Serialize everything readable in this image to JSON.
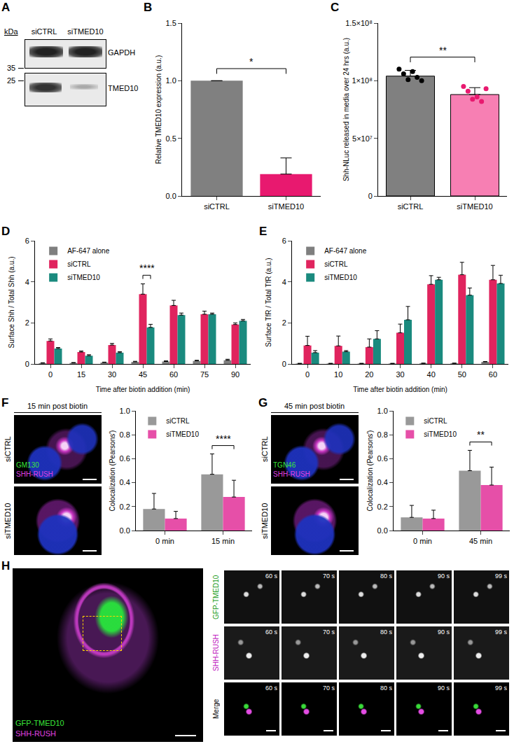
{
  "chart_data": [
    {
      "panel": "B",
      "type": "bar",
      "categories": [
        "siCTRL",
        "siTMED10"
      ],
      "values": [
        1,
        0.19
      ],
      "errors": [
        0,
        0.14
      ],
      "colors": [
        "#808080",
        "#e8196f"
      ],
      "y_label": "Relative TMED10 expression (a.u.)",
      "ylim": [
        0,
        1.5
      ],
      "yticks": [
        {
          "value": 0,
          "label": "0.0"
        },
        0.5,
        {
          "value": 1,
          "label": "1.0"
        },
        1.5
      ],
      "significance": [
        {
          "between": [
            "siCTRL",
            "siTMED10"
          ],
          "label": "*"
        }
      ]
    },
    {
      "panel": "C",
      "type": "bar",
      "categories": [
        "siCTRL",
        "siTMED10"
      ],
      "values": [
        104000000,
        88000000
      ],
      "errors": [
        5000000,
        6000000
      ],
      "points": [
        [
          110000000,
          106000000,
          101000000,
          108000000,
          103000000,
          100000000
        ],
        [
          95000000,
          91000000,
          84000000,
          86000000,
          82000000,
          93000000
        ]
      ],
      "colors": [
        "#808080",
        "#f77fb3"
      ],
      "y_label": "Shh-NLuc released in media over 24 hrs (a.u.)",
      "ylim": [
        0,
        150000000
      ],
      "yticks": [
        0,
        {
          "value": 50000000,
          "label": "5×10⁷"
        },
        {
          "value": 100000000,
          "label": "1×10⁸"
        },
        {
          "value": 150000000,
          "label": "1.5×10⁸"
        }
      ],
      "significance": [
        {
          "between": [
            "siCTRL",
            "siTMED10"
          ],
          "label": "**"
        }
      ]
    },
    {
      "panel": "D",
      "type": "bar",
      "categories": [
        "0",
        "15",
        "30",
        "45",
        "60",
        "75",
        "90"
      ],
      "series": [
        {
          "name": "AF-647 alone",
          "color": "#7f7f7f",
          "values": [
            0.04,
            0.05,
            0.07,
            0.1,
            0.12,
            0.15,
            0.18
          ],
          "errors": [
            0.02,
            0.02,
            0.02,
            0.03,
            0.03,
            0.03,
            0.05
          ]
        },
        {
          "name": "siCTRL",
          "color": "#e0245e",
          "values": [
            1.12,
            0.58,
            0.92,
            3.4,
            2.85,
            2.42,
            1.92
          ],
          "errors": [
            0.1,
            0.05,
            0.08,
            0.5,
            0.25,
            0.15,
            0.08
          ]
        },
        {
          "name": "siTMED10",
          "color": "#1a8a7e",
          "values": [
            0.75,
            0.4,
            0.55,
            1.78,
            2.38,
            2.42,
            2.1
          ],
          "errors": [
            0.05,
            0.05,
            0.05,
            0.15,
            0.1,
            0.06,
            0.07
          ]
        }
      ],
      "x_label": "Time after biotin addition (min)",
      "y_label": "Surface Shh / Total Shh (a.u.)",
      "ylim": [
        0,
        6
      ],
      "yticks": [
        0,
        2,
        4,
        6
      ],
      "legend": "top-left",
      "significance": [
        {
          "category": "45",
          "between": [
            "siCTRL",
            "siTMED10"
          ],
          "label": "****"
        }
      ]
    },
    {
      "panel": "E",
      "type": "bar",
      "categories": [
        "0",
        "10",
        "20",
        "30",
        "40",
        "50",
        "60"
      ],
      "series": [
        {
          "name": "AF-647 alone",
          "color": "#7f7f7f",
          "values": [
            0.02,
            0.02,
            0.02,
            0.02,
            0.03,
            0.03,
            0.1
          ],
          "errors": [
            0.01,
            0.01,
            0.01,
            0.01,
            0.01,
            0.01,
            0.02
          ]
        },
        {
          "name": "siCTRL",
          "color": "#e0245e",
          "values": [
            0.9,
            0.88,
            0.82,
            1.52,
            3.88,
            4.35,
            4.1
          ],
          "errors": [
            0.45,
            0.48,
            0.4,
            0.42,
            0.42,
            0.6,
            0.7
          ]
        },
        {
          "name": "siTMED10",
          "color": "#1a8a7e",
          "values": [
            0.55,
            0.6,
            1.22,
            2.15,
            4.1,
            3.35,
            3.92
          ],
          "errors": [
            0.1,
            0.05,
            0.4,
            0.65,
            0.12,
            0.35,
            0.4
          ]
        }
      ],
      "x_label": "Time after biotin addition (min)",
      "y_label": "Surface TfR / Total TfR (a.u.)",
      "ylim": [
        0,
        6
      ],
      "yticks": [
        0,
        2,
        4,
        6
      ],
      "legend": "top-left"
    },
    {
      "type": "bar",
      "categories": [
        "0 min",
        "15 min"
      ],
      "series": [
        {
          "name": "siCTRL",
          "color": "#999999",
          "values": [
            0.18,
            0.47
          ],
          "errors": [
            0.13,
            0.17
          ]
        },
        {
          "name": "siTMED10",
          "color": "#e64fa8",
          "values": [
            0.1,
            0.28
          ],
          "errors": [
            0.06,
            0.14
          ]
        }
      ],
      "y_label": "Colocalization (Pearsons')",
      "ylim": [
        0,
        1
      ],
      "yticks": [
        {
          "value": 0,
          "label": "0.0"
        },
        0.2,
        0.4,
        0.6,
        0.8,
        {
          "value": 1,
          "label": "1.0"
        }
      ],
      "legend": "top-left",
      "significance": [
        {
          "category": "15 min",
          "between": [
            "siCTRL",
            "siTMED10"
          ],
          "label": "****"
        }
      ]
    },
    {
      "type": "bar",
      "categories": [
        "0 min",
        "45 min"
      ],
      "series": [
        {
          "name": "siCTRL",
          "color": "#999999",
          "values": [
            0.11,
            0.5
          ],
          "errors": [
            0.1,
            0.17
          ]
        },
        {
          "name": "siTMED10",
          "color": "#e64fa8",
          "values": [
            0.1,
            0.38
          ],
          "errors": [
            0.07,
            0.15
          ]
        }
      ],
      "y_label": "Colocalization (Pearsons')",
      "ylim": [
        0,
        1
      ],
      "yticks": [
        {
          "value": 0,
          "label": "0.0"
        },
        0.2,
        0.4,
        0.6,
        0.8,
        {
          "value": 1,
          "label": "1.0"
        }
      ],
      "legend": "top-left",
      "significance": [
        {
          "category": "45 min",
          "between": [
            "siCTRL",
            "siTMED10"
          ],
          "label": "**"
        }
      ]
    }
  ],
  "blot": {
    "panel": "A",
    "unit": "kDa",
    "lanes": [
      "siCTRL",
      "siTMED10"
    ],
    "markers": [
      35,
      25
    ],
    "proteins": [
      "GAPDH",
      "TMED10"
    ]
  },
  "micrographs": [
    {
      "panel": "F",
      "title": "15 min post biotin",
      "rows": [
        "siCTRL",
        "siTMED10"
      ],
      "labels": [
        "GM130",
        "SHH-RUSH"
      ]
    },
    {
      "panel": "G",
      "title": "45 min post biotin",
      "rows": [
        "siCTRL",
        "siTMED10"
      ],
      "labels": [
        "TGN46",
        "SHH-RUSH"
      ]
    },
    {
      "panel": "H",
      "labels": [
        "GFP-TMED10",
        "SHH-RUSH"
      ],
      "rows": [
        "GFP-TMED10",
        "SHH-RUSH",
        "Merge"
      ],
      "times": [
        "60 s",
        "70 s",
        "80 s",
        "90 s",
        "99 s"
      ]
    }
  ]
}
